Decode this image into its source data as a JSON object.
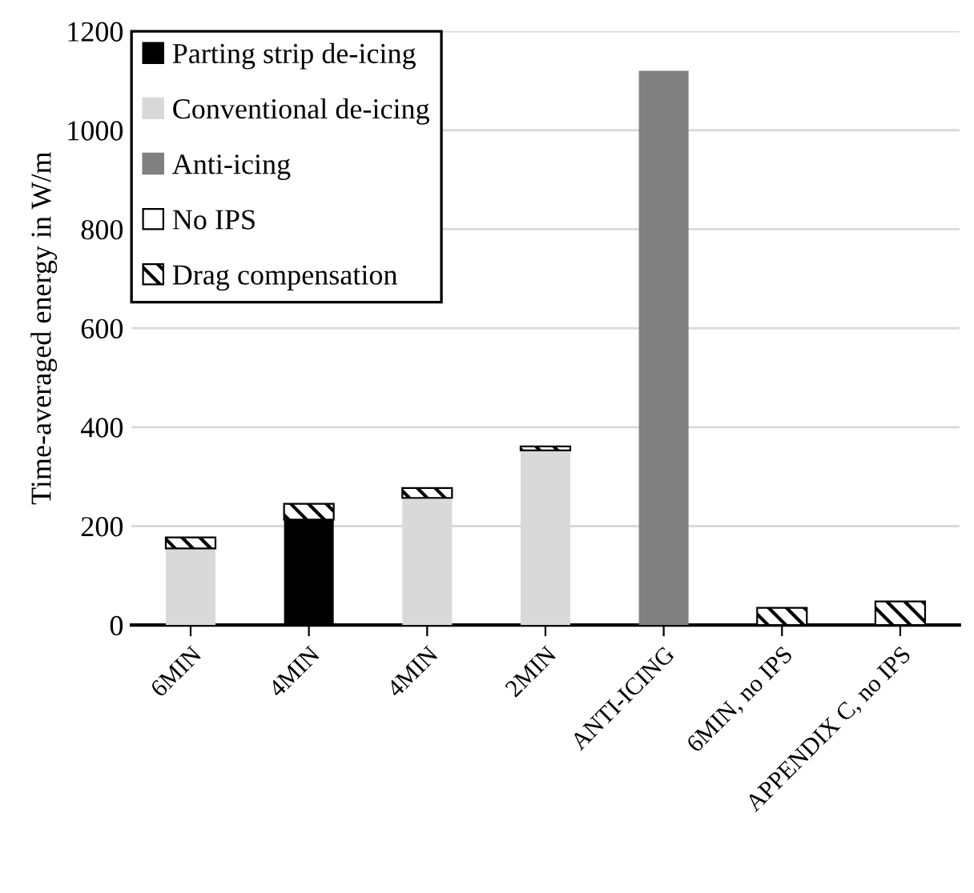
{
  "chart_data": {
    "type": "bar",
    "stacked": true,
    "ylabel": "Time-averaged energy in W/m",
    "categories": [
      "6MIN",
      "4MIN",
      "4MIN",
      "2MIN",
      "ANTI-ICING",
      "6MIN, no IPS",
      "APPENDIX C, no IPS"
    ],
    "series": [
      {
        "name": "Parting strip de-icing",
        "color": "#000000",
        "values": [
          null,
          213,
          null,
          null,
          null,
          null,
          null
        ]
      },
      {
        "name": "Conventional de-icing",
        "color": "#d9d9d9",
        "values": [
          155,
          null,
          257,
          353,
          null,
          null,
          null
        ]
      },
      {
        "name": "Anti-icing",
        "color": "#808080",
        "values": [
          null,
          null,
          null,
          null,
          1120,
          null,
          null
        ]
      },
      {
        "name": "No IPS",
        "color": "#ffffff",
        "values": [
          null,
          null,
          null,
          null,
          null,
          0,
          0
        ]
      },
      {
        "name": "Drag compensation",
        "color": "#000000",
        "values": [
          22,
          32,
          20,
          8,
          null,
          35,
          48
        ]
      }
    ],
    "ylim": [
      0,
      1200
    ],
    "yticks": [
      0,
      200,
      400,
      600,
      800,
      1000,
      1200
    ],
    "grid": "y",
    "legend": "top left"
  }
}
